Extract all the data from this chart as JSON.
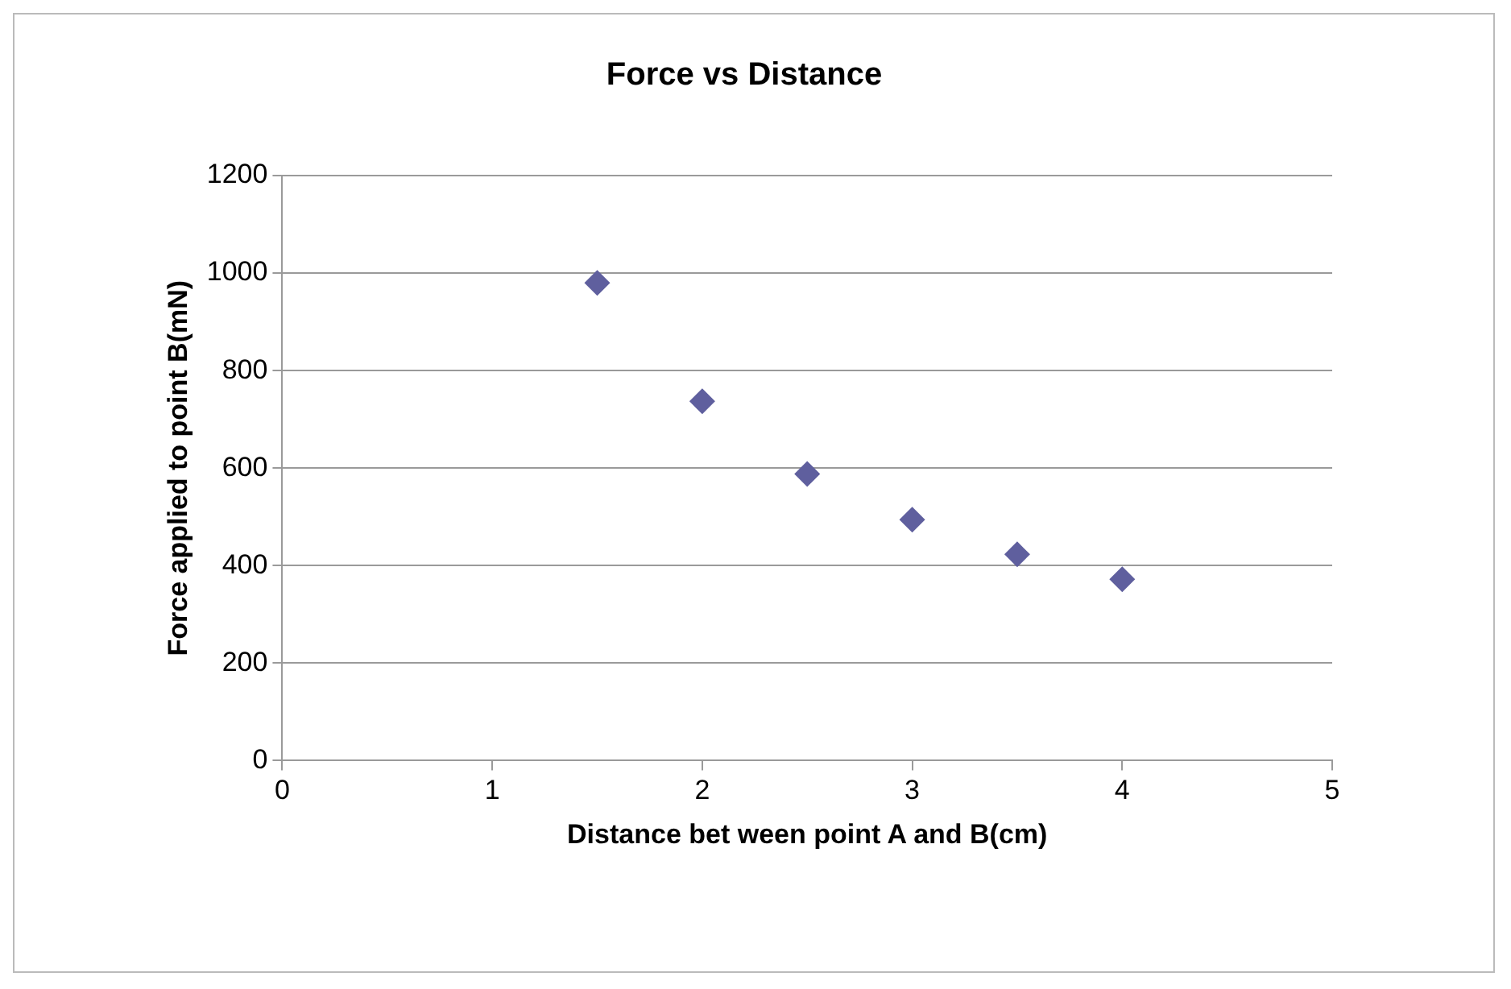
{
  "chart_data": {
    "type": "scatter",
    "title": "Force vs Distance",
    "xlabel": "Distance bet ween point A and B(cm)",
    "ylabel": "Force applied to point B(mN)",
    "x": [
      1.5,
      2,
      2.5,
      3,
      3.5,
      4
    ],
    "series": [
      {
        "color": "#5f5f9e",
        "values": [
          980,
          737,
          588,
          494,
          423,
          372
        ]
      }
    ],
    "xlim": [
      0,
      5
    ],
    "xticks": [
      0,
      1,
      2,
      3,
      4,
      5
    ],
    "ylim": [
      0,
      1200
    ],
    "yticks": [
      0,
      200,
      400,
      600,
      800,
      1000,
      1200
    ],
    "grid": "y",
    "legend": false,
    "marker": "diamond"
  }
}
